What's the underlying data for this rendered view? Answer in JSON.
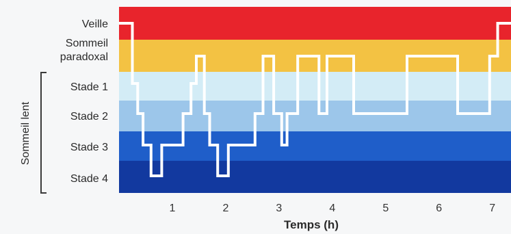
{
  "chart_data": {
    "type": "line",
    "title": "",
    "xlabel": "Temps (h)",
    "ylabel": "",
    "xlim": [
      0,
      7.35
    ],
    "x_ticks": [
      1,
      2,
      3,
      4,
      5,
      6,
      7
    ],
    "stages": [
      {
        "key": "veille",
        "label": "Veille",
        "color": "#e8242c"
      },
      {
        "key": "paradoxal",
        "label": [
          "Sommeil",
          "paradoxal"
        ],
        "color": "#f3c243"
      },
      {
        "key": "stade1",
        "label": "Stade 1",
        "color": "#d3ecf6"
      },
      {
        "key": "stade2",
        "label": "Stade 2",
        "color": "#9cc6ea"
      },
      {
        "key": "stade3",
        "label": "Stade 3",
        "color": "#1f5ec9"
      },
      {
        "key": "stade4",
        "label": "Stade 4",
        "color": "#12399f"
      }
    ],
    "group_label": "Sommeil lent",
    "hypnogram": {
      "name": "",
      "color": "#ffffff",
      "x": [
        0,
        0.25,
        0.25,
        0.35,
        0.35,
        0.45,
        0.45,
        0.6,
        0.6,
        0.8,
        0.8,
        1.2,
        1.2,
        1.35,
        1.35,
        1.45,
        1.45,
        1.6,
        1.6,
        1.7,
        1.7,
        1.85,
        1.85,
        2.05,
        2.05,
        2.55,
        2.55,
        2.7,
        2.7,
        2.9,
        2.9,
        3.05,
        3.05,
        3.15,
        3.15,
        3.35,
        3.35,
        3.75,
        3.75,
        3.9,
        3.9,
        4.4,
        4.4,
        5.4,
        5.4,
        6.35,
        6.35,
        6.95,
        6.95,
        7.1,
        7.1,
        7.35
      ],
      "y": [
        0,
        0,
        2,
        2,
        3,
        3,
        4,
        4,
        5,
        5,
        4,
        4,
        3,
        3,
        2,
        2,
        1,
        1,
        3,
        3,
        4,
        4,
        5,
        5,
        4,
        4,
        3,
        3,
        1,
        1,
        3,
        3,
        4,
        4,
        3,
        3,
        1,
        1,
        3,
        3,
        1,
        1,
        3,
        3,
        1,
        1,
        3,
        3,
        1,
        1,
        0,
        0
      ]
    }
  }
}
